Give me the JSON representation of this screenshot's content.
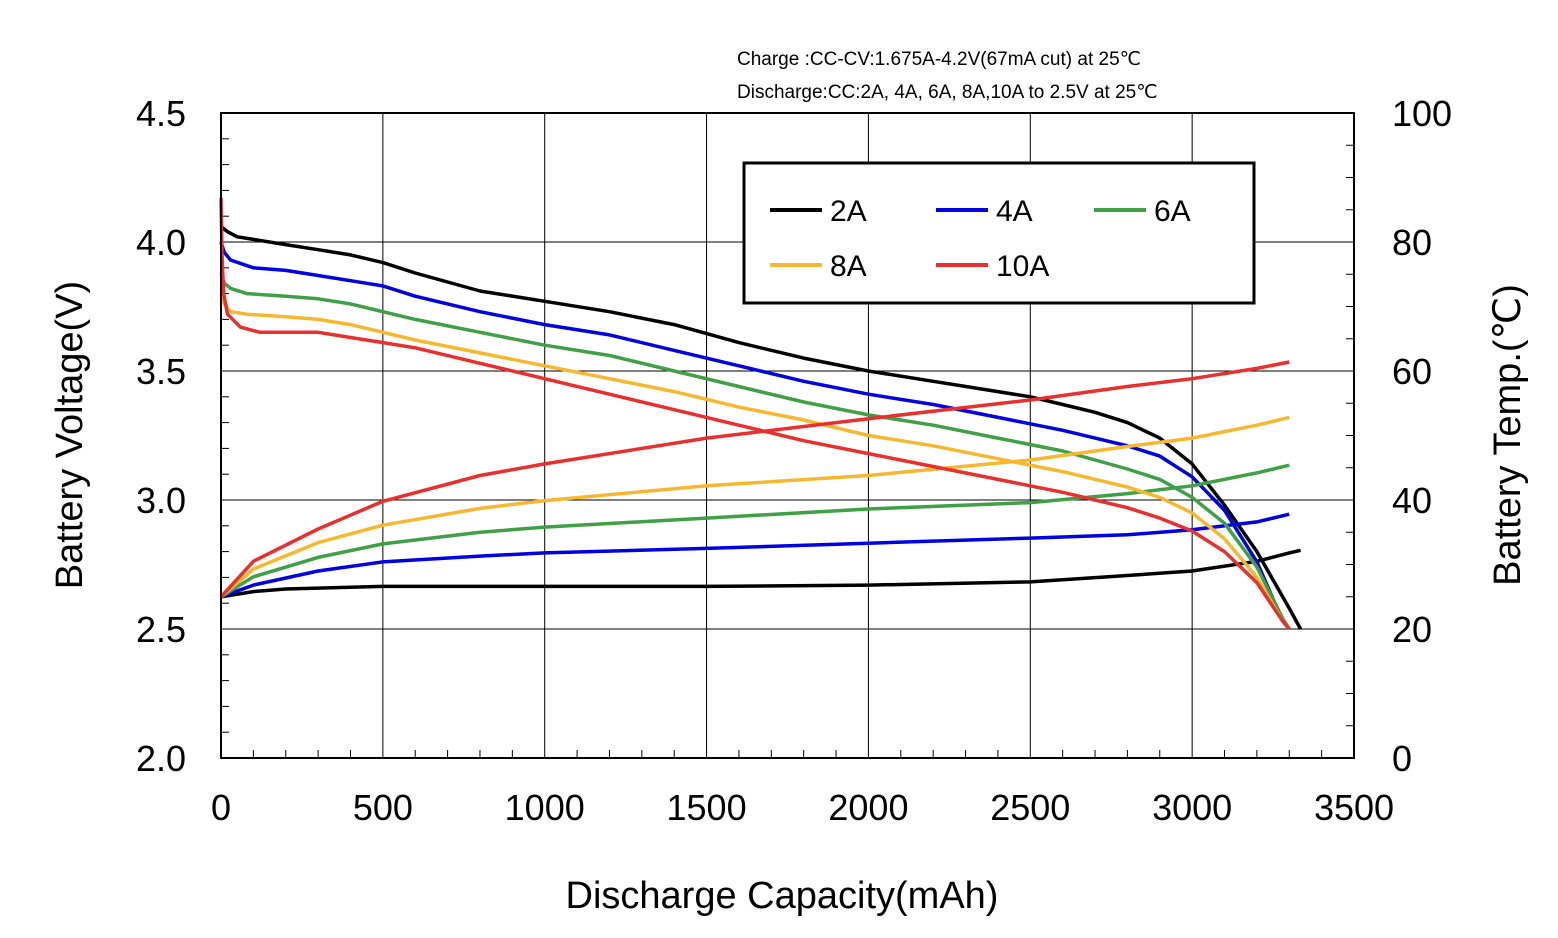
{
  "chart_data": {
    "type": "line",
    "notes": [
      "Charge :CC-CV:1.675A-4.2V(67mA cut) at 25℃",
      "Discharge:CC:2A, 4A, 6A, 8A,10A to 2.5V at 25℃"
    ],
    "xlabel": "Discharge Capacity(mAh)",
    "ylabel_left": "Battery Voltage(V)",
    "ylabel_right": "Battery Temp.(℃)",
    "xlim": [
      0,
      3500
    ],
    "ylim_left": [
      2.0,
      4.5
    ],
    "ylim_right": [
      0,
      100
    ],
    "x_ticks": [
      "0",
      "500",
      "1000",
      "1500",
      "2000",
      "2500",
      "3000",
      "3500"
    ],
    "y_left_ticks": [
      "2.0",
      "2.5",
      "3.0",
      "3.5",
      "4.0",
      "4.5"
    ],
    "y_right_ticks": [
      "0",
      "20",
      "40",
      "60",
      "80",
      "100"
    ],
    "grid": true,
    "legend_position": "top-right",
    "series": [
      {
        "name": "2A",
        "color": "#000000",
        "voltage": [
          [
            0,
            4.06
          ],
          [
            20,
            4.04
          ],
          [
            50,
            4.02
          ],
          [
            100,
            4.01
          ],
          [
            200,
            3.99
          ],
          [
            300,
            3.97
          ],
          [
            400,
            3.95
          ],
          [
            500,
            3.92
          ],
          [
            600,
            3.88
          ],
          [
            800,
            3.81
          ],
          [
            1000,
            3.77
          ],
          [
            1200,
            3.73
          ],
          [
            1400,
            3.68
          ],
          [
            1600,
            3.61
          ],
          [
            1800,
            3.55
          ],
          [
            2000,
            3.5
          ],
          [
            2200,
            3.46
          ],
          [
            2400,
            3.42
          ],
          [
            2500,
            3.4
          ],
          [
            2600,
            3.37
          ],
          [
            2700,
            3.34
          ],
          [
            2800,
            3.3
          ],
          [
            2900,
            3.24
          ],
          [
            3000,
            3.14
          ],
          [
            3100,
            2.98
          ],
          [
            3200,
            2.8
          ],
          [
            3300,
            2.58
          ],
          [
            3335,
            2.5
          ]
        ],
        "temperature": [
          [
            0,
            25
          ],
          [
            100,
            25.8
          ],
          [
            200,
            26.2
          ],
          [
            500,
            26.6
          ],
          [
            1000,
            26.6
          ],
          [
            1500,
            26.6
          ],
          [
            2000,
            26.8
          ],
          [
            2500,
            27.3
          ],
          [
            2800,
            28.3
          ],
          [
            3000,
            29.0
          ],
          [
            3200,
            30.5
          ],
          [
            3300,
            31.8
          ],
          [
            3335,
            32.2
          ]
        ]
      },
      {
        "name": "4A",
        "color": "#0000e0",
        "voltage": [
          [
            0,
            4.0
          ],
          [
            10,
            3.96
          ],
          [
            30,
            3.93
          ],
          [
            100,
            3.9
          ],
          [
            200,
            3.89
          ],
          [
            300,
            3.87
          ],
          [
            400,
            3.85
          ],
          [
            500,
            3.83
          ],
          [
            600,
            3.79
          ],
          [
            800,
            3.73
          ],
          [
            1000,
            3.68
          ],
          [
            1200,
            3.64
          ],
          [
            1400,
            3.58
          ],
          [
            1600,
            3.52
          ],
          [
            1800,
            3.46
          ],
          [
            2000,
            3.41
          ],
          [
            2200,
            3.37
          ],
          [
            2400,
            3.32
          ],
          [
            2600,
            3.27
          ],
          [
            2800,
            3.21
          ],
          [
            2900,
            3.17
          ],
          [
            3000,
            3.09
          ],
          [
            3100,
            2.96
          ],
          [
            3200,
            2.76
          ],
          [
            3280,
            2.53
          ],
          [
            3300,
            2.5
          ]
        ],
        "temperature": [
          [
            0,
            25
          ],
          [
            100,
            26.8
          ],
          [
            300,
            29.0
          ],
          [
            500,
            30.4
          ],
          [
            800,
            31.3
          ],
          [
            1000,
            31.8
          ],
          [
            1500,
            32.5
          ],
          [
            2000,
            33.3
          ],
          [
            2500,
            34.1
          ],
          [
            2800,
            34.6
          ],
          [
            3000,
            35.4
          ],
          [
            3200,
            36.6
          ],
          [
            3300,
            37.8
          ]
        ]
      },
      {
        "name": "6A",
        "color": "#3fa046",
        "voltage": [
          [
            0,
            3.88
          ],
          [
            10,
            3.84
          ],
          [
            30,
            3.82
          ],
          [
            80,
            3.8
          ],
          [
            200,
            3.79
          ],
          [
            300,
            3.78
          ],
          [
            400,
            3.76
          ],
          [
            500,
            3.73
          ],
          [
            600,
            3.7
          ],
          [
            800,
            3.65
          ],
          [
            1000,
            3.6
          ],
          [
            1200,
            3.56
          ],
          [
            1400,
            3.5
          ],
          [
            1600,
            3.44
          ],
          [
            1800,
            3.38
          ],
          [
            2000,
            3.33
          ],
          [
            2200,
            3.29
          ],
          [
            2400,
            3.24
          ],
          [
            2600,
            3.19
          ],
          [
            2800,
            3.12
          ],
          [
            2900,
            3.08
          ],
          [
            3000,
            3.01
          ],
          [
            3100,
            2.91
          ],
          [
            3200,
            2.74
          ],
          [
            3280,
            2.54
          ],
          [
            3300,
            2.5
          ]
        ],
        "temperature": [
          [
            0,
            25
          ],
          [
            100,
            28.1
          ],
          [
            300,
            31.1
          ],
          [
            500,
            33.2
          ],
          [
            800,
            35.0
          ],
          [
            1000,
            35.8
          ],
          [
            1500,
            37.2
          ],
          [
            2000,
            38.6
          ],
          [
            2500,
            39.6
          ],
          [
            2800,
            41.0
          ],
          [
            3000,
            42.2
          ],
          [
            3200,
            44.2
          ],
          [
            3300,
            45.4
          ]
        ]
      },
      {
        "name": "8A",
        "color": "#f5b830",
        "voltage": [
          [
            0,
            3.8
          ],
          [
            10,
            3.76
          ],
          [
            30,
            3.73
          ],
          [
            80,
            3.72
          ],
          [
            200,
            3.71
          ],
          [
            300,
            3.7
          ],
          [
            400,
            3.68
          ],
          [
            500,
            3.65
          ],
          [
            600,
            3.62
          ],
          [
            800,
            3.57
          ],
          [
            1000,
            3.52
          ],
          [
            1200,
            3.47
          ],
          [
            1400,
            3.42
          ],
          [
            1600,
            3.36
          ],
          [
            1800,
            3.31
          ],
          [
            2000,
            3.25
          ],
          [
            2200,
            3.21
          ],
          [
            2400,
            3.16
          ],
          [
            2600,
            3.11
          ],
          [
            2800,
            3.05
          ],
          [
            2900,
            3.01
          ],
          [
            3000,
            2.95
          ],
          [
            3100,
            2.85
          ],
          [
            3200,
            2.7
          ],
          [
            3280,
            2.53
          ],
          [
            3300,
            2.5
          ]
        ],
        "temperature": [
          [
            0,
            25
          ],
          [
            100,
            29.3
          ],
          [
            300,
            33.4
          ],
          [
            500,
            36.1
          ],
          [
            800,
            38.7
          ],
          [
            1000,
            39.9
          ],
          [
            1500,
            42.2
          ],
          [
            2000,
            43.8
          ],
          [
            2500,
            46.2
          ],
          [
            2800,
            48.3
          ],
          [
            3000,
            49.6
          ],
          [
            3200,
            51.6
          ],
          [
            3300,
            52.8
          ]
        ]
      },
      {
        "name": "10A",
        "color": "#e8312f",
        "voltage": [
          [
            0,
            4.17
          ],
          [
            3,
            3.95
          ],
          [
            8,
            3.8
          ],
          [
            20,
            3.72
          ],
          [
            60,
            3.67
          ],
          [
            120,
            3.65
          ],
          [
            300,
            3.65
          ],
          [
            400,
            3.63
          ],
          [
            500,
            3.61
          ],
          [
            600,
            3.59
          ],
          [
            800,
            3.53
          ],
          [
            1000,
            3.47
          ],
          [
            1200,
            3.41
          ],
          [
            1400,
            3.35
          ],
          [
            1600,
            3.29
          ],
          [
            1800,
            3.23
          ],
          [
            2000,
            3.18
          ],
          [
            2200,
            3.13
          ],
          [
            2400,
            3.08
          ],
          [
            2600,
            3.03
          ],
          [
            2800,
            2.97
          ],
          [
            2900,
            2.93
          ],
          [
            3000,
            2.88
          ],
          [
            3100,
            2.8
          ],
          [
            3200,
            2.68
          ],
          [
            3280,
            2.53
          ],
          [
            3300,
            2.5
          ]
        ],
        "temperature": [
          [
            0,
            25
          ],
          [
            100,
            30.5
          ],
          [
            300,
            35.5
          ],
          [
            500,
            39.8
          ],
          [
            800,
            43.8
          ],
          [
            1000,
            45.6
          ],
          [
            1500,
            49.6
          ],
          [
            2000,
            52.6
          ],
          [
            2500,
            55.5
          ],
          [
            2800,
            57.6
          ],
          [
            3000,
            58.8
          ],
          [
            3200,
            60.4
          ],
          [
            3300,
            61.4
          ]
        ]
      }
    ]
  }
}
